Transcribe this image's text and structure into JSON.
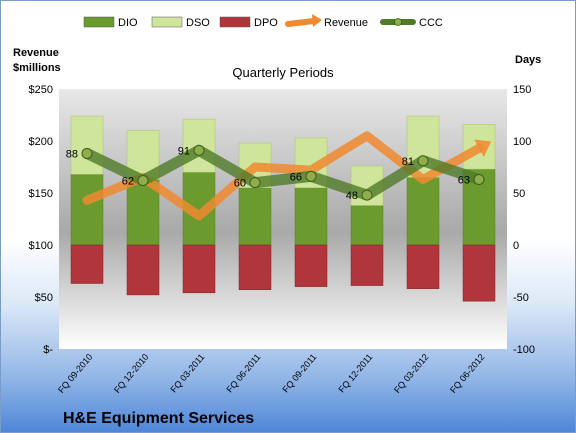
{
  "company": "H&E Equipment Services",
  "left_axis_title_line1": "Revenue",
  "left_axis_title_line2": "$millions",
  "right_axis_title": "Days",
  "chart_data": {
    "type": "bar",
    "title": "Quarterly Periods",
    "categories": [
      "FQ 09-2010",
      "FQ 12-2010",
      "FQ 03-2011",
      "FQ 06-2011",
      "FQ 09-2011",
      "FQ 12-2011",
      "FQ 03-2012",
      "FQ 06-2012"
    ],
    "left_axis": {
      "label": "Revenue $millions",
      "ylim": [
        0,
        250
      ],
      "ticks": [
        "$-",
        "$50",
        "$100",
        "$150",
        "$200",
        "$250"
      ]
    },
    "right_axis": {
      "label": "Days",
      "ylim": [
        -100,
        150
      ],
      "ticks": [
        "-100",
        "-50",
        "0",
        "50",
        "100",
        "150"
      ]
    },
    "series": [
      {
        "name": "DIO",
        "type": "bar",
        "axis": "right",
        "color": "#6b9a2e",
        "values": [
          68,
          63,
          70,
          55,
          55,
          38,
          65,
          73
        ]
      },
      {
        "name": "DSO",
        "type": "bar",
        "axis": "right",
        "color": "#cfe59c",
        "values": [
          56,
          47,
          51,
          43,
          48,
          38,
          59,
          43
        ]
      },
      {
        "name": "DPO",
        "type": "bar",
        "axis": "right",
        "color": "#b0363c",
        "values": [
          -37,
          -48,
          -46,
          -43,
          -40,
          -39,
          -42,
          -54
        ]
      },
      {
        "name": "Revenue",
        "type": "line",
        "axis": "left",
        "color": "#f08a30",
        "values": [
          143,
          165,
          128,
          175,
          172,
          205,
          163,
          193
        ]
      },
      {
        "name": "CCC",
        "type": "line",
        "axis": "right",
        "color": "#4f7a28",
        "values": [
          88,
          62,
          91,
          60,
          66,
          48,
          81,
          63
        ]
      }
    ],
    "data_labels": [
      "88",
      "62",
      "91",
      "60",
      "66",
      "48",
      "81",
      "63"
    ],
    "legend_position": "top",
    "grid": false
  }
}
